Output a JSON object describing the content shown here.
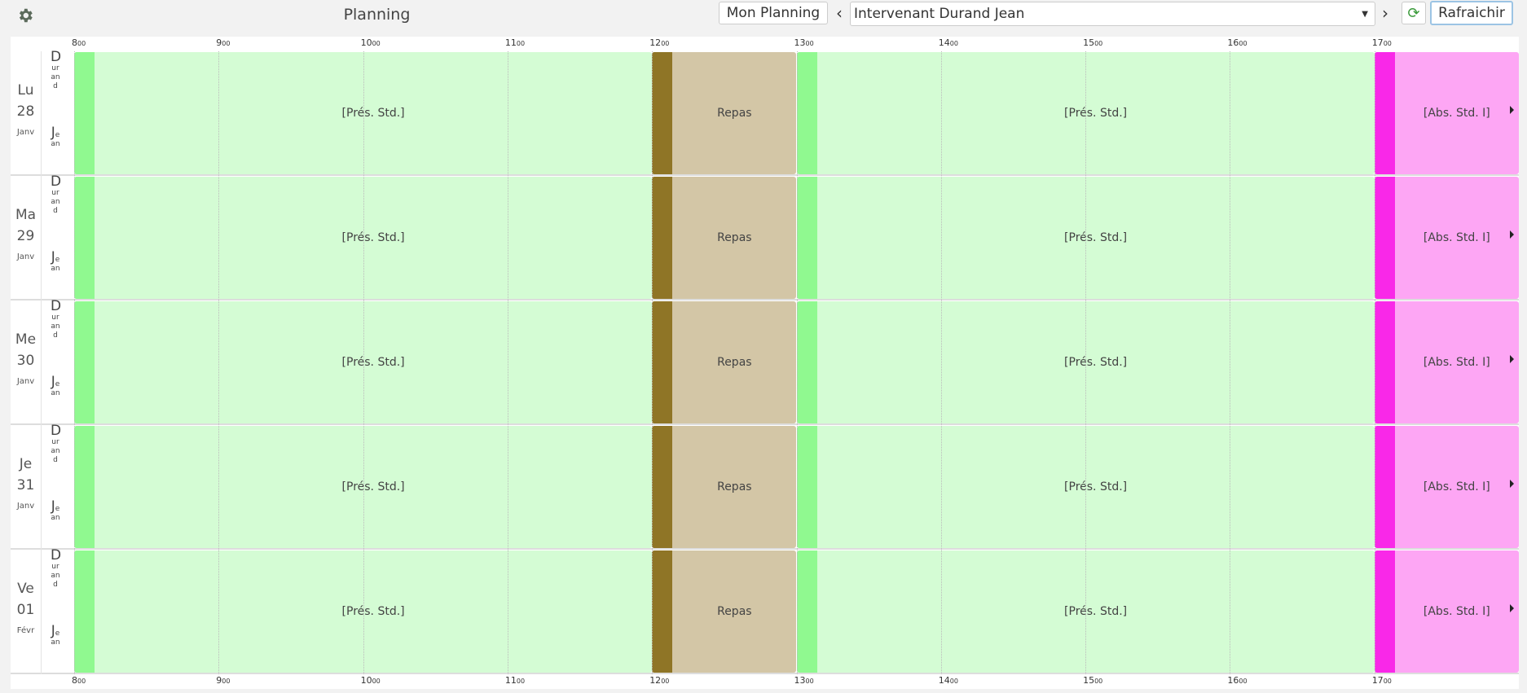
{
  "header": {
    "title": "Planning",
    "my_planning": "Mon Planning",
    "selector": "Intervenant Durand Jean",
    "refresh": "Rafraichir"
  },
  "timeline": {
    "hours": [
      "8",
      "9",
      "10",
      "11",
      "12",
      "13",
      "14",
      "15",
      "16",
      "17"
    ],
    "minutes": "00"
  },
  "rows": [
    {
      "day": "Lu",
      "date": "28",
      "month": "Janv",
      "last": "Durand",
      "first": "Jean",
      "events": [
        "[Prés. Std.]",
        "Repas",
        "[Prés. Std.]",
        "[Abs. Std. I]"
      ]
    },
    {
      "day": "Ma",
      "date": "29",
      "month": "Janv",
      "last": "Durand",
      "first": "Jean",
      "events": [
        "[Prés. Std.]",
        "Repas",
        "[Prés. Std.]",
        "[Abs. Std. I]"
      ]
    },
    {
      "day": "Me",
      "date": "30",
      "month": "Janv",
      "last": "Durand",
      "first": "Jean",
      "events": [
        "[Prés. Std.]",
        "Repas",
        "[Prés. Std.]",
        "[Abs. Std. I]"
      ]
    },
    {
      "day": "Je",
      "date": "31",
      "month": "Janv",
      "last": "Durand",
      "first": "Jean",
      "events": [
        "[Prés. Std.]",
        "Repas",
        "[Prés. Std.]",
        "[Abs. Std. I]"
      ]
    },
    {
      "day": "Ve",
      "date": "01",
      "month": "Févr",
      "last": "Durand",
      "first": "Jean",
      "events": [
        "[Prés. Std.]",
        "Repas",
        "[Prés. Std.]",
        "[Abs. Std. I]"
      ]
    }
  ]
}
